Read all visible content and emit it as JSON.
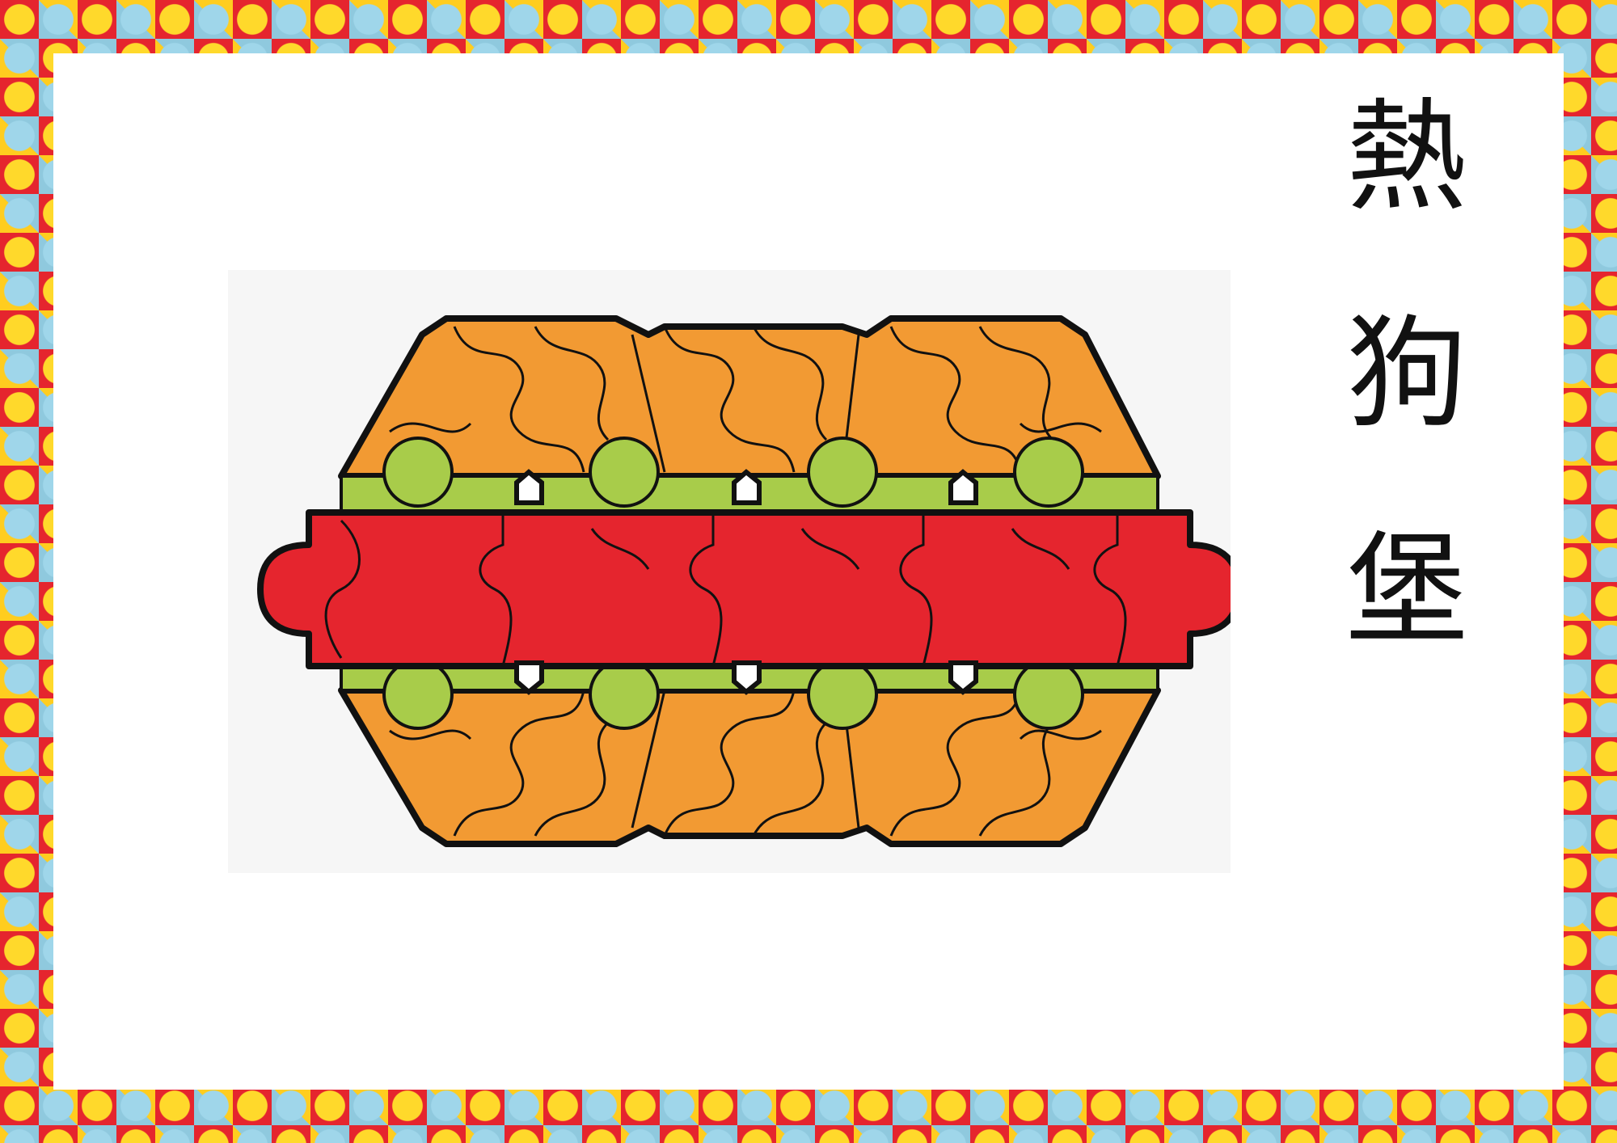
{
  "title_chars": [
    "熱",
    "狗",
    "堡"
  ],
  "colors": {
    "orange": "#f29a33",
    "green": "#a8cc4a",
    "red": "#e5252e",
    "outline": "#111111"
  },
  "icons": {
    "frame": "puzzle-pattern-border",
    "figure": "hotdog-puzzle-icon"
  }
}
